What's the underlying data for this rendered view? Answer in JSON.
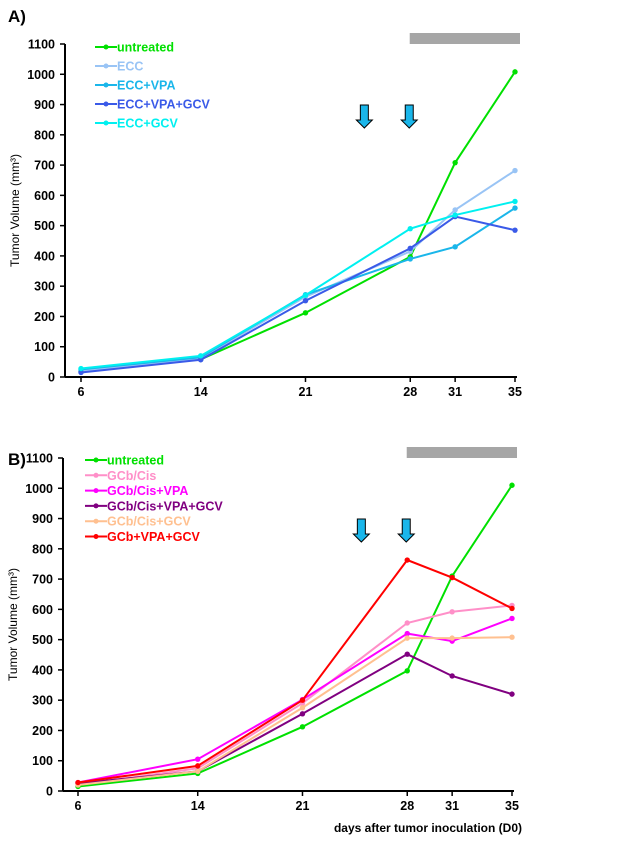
{
  "chart_data": [
    {
      "type": "line",
      "panel_label": "A)",
      "ylabel": "Tumor Volume (mm³)",
      "xlabel": "",
      "x": [
        6,
        14,
        21,
        28,
        31,
        35
      ],
      "x_tick_labels": [
        "6",
        "14",
        "21",
        "28",
        "31",
        "35"
      ],
      "ylim": [
        0,
        1100
      ],
      "y_ticks": [
        0,
        100,
        200,
        300,
        400,
        500,
        600,
        700,
        800,
        900,
        1000,
        1100
      ],
      "treatment_period": [
        28.5,
        35
      ],
      "arrows_at_days": [
        25,
        28
      ],
      "legend_position": "top-left",
      "series": [
        {
          "name": "untreated",
          "color": "#00e000",
          "values": [
            18,
            58,
            212,
            397,
            708,
            1008
          ]
        },
        {
          "name": "ECC",
          "color": "#99c4f5",
          "values": [
            20,
            62,
            265,
            415,
            552,
            682
          ]
        },
        {
          "name": "ECC+VPA",
          "color": "#1ab6ea",
          "values": [
            25,
            65,
            272,
            390,
            430,
            558
          ]
        },
        {
          "name": "ECC+VPA+GCV",
          "color": "#3a5ae8",
          "values": [
            15,
            57,
            252,
            425,
            530,
            485
          ]
        },
        {
          "name": "ECC+GCV",
          "color": "#00f0f0",
          "values": [
            28,
            70,
            270,
            490,
            535,
            580
          ]
        }
      ]
    },
    {
      "type": "line",
      "panel_label": "B)",
      "ylabel": "Tumor Volume (mm³)",
      "xlabel": "days after tumor inoculation (D0)",
      "x": [
        6,
        14,
        21,
        28,
        31,
        35
      ],
      "x_tick_labels": [
        "6",
        "14",
        "21",
        "28",
        "31",
        "35"
      ],
      "ylim": [
        0,
        1100
      ],
      "y_ticks": [
        0,
        100,
        200,
        300,
        400,
        500,
        600,
        700,
        800,
        900,
        1000,
        1100
      ],
      "treatment_period": [
        28.5,
        35
      ],
      "arrows_at_days": [
        25,
        28
      ],
      "legend_position": "top-left",
      "series": [
        {
          "name": "untreated",
          "color": "#00e000",
          "values": [
            15,
            58,
            212,
            397,
            710,
            1010
          ]
        },
        {
          "name": "GCb/Cis",
          "color": "#ff8fc8",
          "values": [
            20,
            75,
            290,
            555,
            592,
            613
          ]
        },
        {
          "name": "GCb/Cis+VPA",
          "color": "#ff00ff",
          "values": [
            28,
            105,
            302,
            520,
            495,
            570
          ]
        },
        {
          "name": "GCb/Cis+VPA+GCV",
          "color": "#800080",
          "values": [
            25,
            65,
            255,
            452,
            380,
            320
          ]
        },
        {
          "name": "GCb/Cis+GCV",
          "color": "#ffc090",
          "values": [
            20,
            65,
            275,
            505,
            505,
            508
          ]
        },
        {
          "name": "GCb+VPA+GCV",
          "color": "#ff0000",
          "values": [
            28,
            83,
            300,
            763,
            705,
            603
          ]
        }
      ]
    }
  ],
  "colors": {
    "treatment_bar": "#a6a6a6",
    "arrow_fill": "#1ab6ea",
    "axis": "#000000"
  }
}
